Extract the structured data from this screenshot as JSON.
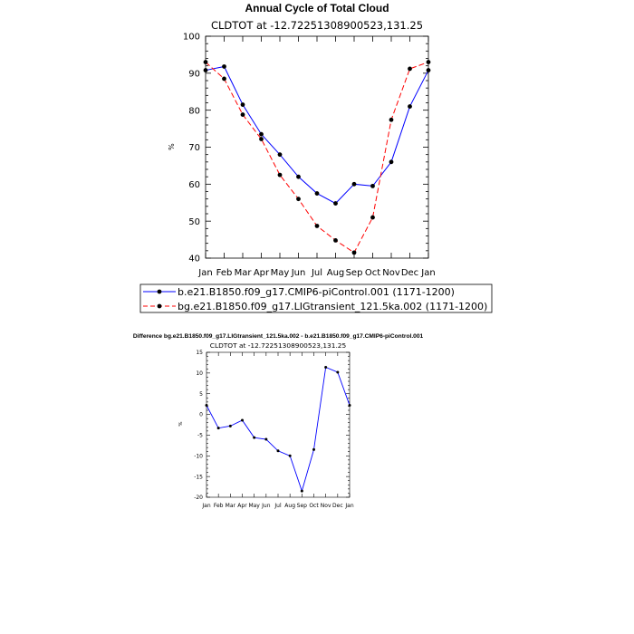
{
  "chart_data": [
    {
      "type": "line",
      "title": "Annual Cycle of Total Cloud",
      "subtitle": "CLDTOT at -12.72251308900523,131.25",
      "xlabel": "",
      "ylabel": "%",
      "categories": [
        "Jan",
        "Feb",
        "Mar",
        "Apr",
        "May",
        "Jun",
        "Jul",
        "Aug",
        "Sep",
        "Oct",
        "Nov",
        "Dec",
        "Jan"
      ],
      "ylim": [
        40,
        100
      ],
      "yticks": [
        40,
        50,
        60,
        70,
        80,
        90,
        100
      ],
      "grid": false,
      "legend_position": "bottom",
      "series": [
        {
          "name": "b.e21.B1850.f09_g17.CMIP6-piControl.001 (1171-1200)",
          "color": "#0000ff",
          "dash": "solid",
          "values": [
            90.8,
            91.8,
            81.5,
            73.5,
            68.0,
            62.0,
            57.5,
            54.8,
            60.0,
            59.5,
            66.0,
            81.0,
            90.8
          ]
        },
        {
          "name": "bg.e21.B1850.f09_g17.LIGtransient_121.5ka.002 (1171-1200)",
          "color": "#ff0000",
          "dash": "dashed",
          "values": [
            93.0,
            88.5,
            78.8,
            72.2,
            62.5,
            56.0,
            48.7,
            44.8,
            41.5,
            51.0,
            77.4,
            91.2,
            93.0
          ]
        }
      ]
    },
    {
      "type": "line",
      "title": "Difference bg.e21.B1850.f09_g17.LIGtransient_121.5ka.002 - b.e21.B1850.f09_g17.CMIP6-piControl.001",
      "subtitle": "CLDTOT at -12.72251308900523,131.25",
      "xlabel": "",
      "ylabel": "%",
      "categories": [
        "Jan",
        "Feb",
        "Mar",
        "Apr",
        "May",
        "Jun",
        "Jul",
        "Aug",
        "Sep",
        "Oct",
        "Nov",
        "Dec",
        "Jan"
      ],
      "ylim": [
        -20,
        15
      ],
      "yticks": [
        -20,
        -15,
        -10,
        -5,
        0,
        5,
        10,
        15
      ],
      "grid": false,
      "series": [
        {
          "name": "",
          "color": "#0000ff",
          "dash": "solid",
          "values": [
            2.2,
            -3.3,
            -2.8,
            -1.4,
            -5.6,
            -6.0,
            -8.8,
            -10.0,
            -18.5,
            -8.5,
            11.4,
            10.2,
            2.2
          ]
        }
      ]
    }
  ]
}
